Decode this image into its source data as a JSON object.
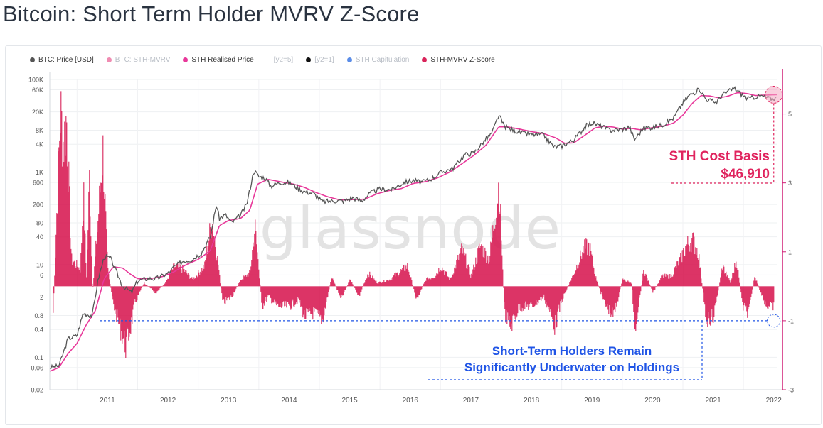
{
  "page": {
    "title": "Bitcoin: Short Term Holder MVRV Z-Score"
  },
  "legend": [
    {
      "label": "BTC: Price [USD]",
      "color": "#555555",
      "active": true
    },
    {
      "label": "BTC: STH-MVRV",
      "color": "#f08cb2",
      "active": false
    },
    {
      "label": "STH Realised Price",
      "color": "#e8389a",
      "active": true
    },
    {
      "label": "[y2=5]",
      "color": "",
      "active": false
    },
    {
      "label": "[y2=1]",
      "color": "#111111",
      "active": false
    },
    {
      "label": "STH Capitulation",
      "color": "#5b8de8",
      "active": false
    },
    {
      "label": "STH-MVRV Z-Score",
      "color": "#d9245a",
      "active": true
    }
  ],
  "watermark": "glassnode",
  "annotations": {
    "cost_basis_title": "STH Cost Basis",
    "cost_basis_value": "$46,910",
    "underwater_line1": "Short-Term Holders Remain",
    "underwater_line2": "Significantly Underwater on Holdings"
  },
  "colors": {
    "price": "#555555",
    "realised": "#e8389a",
    "zscore": "#d9245a",
    "accent_red": "#e0245e",
    "accent_blue": "#1f54e6",
    "right_axis": "#d01f76"
  },
  "chart_data": {
    "type": "line",
    "title": "Bitcoin: Short Term Holder MVRV Z-Score",
    "x_ticks": [
      "2011",
      "2012",
      "2013",
      "2014",
      "2015",
      "2016",
      "2017",
      "2018",
      "2019",
      "2020",
      "2021",
      "2022"
    ],
    "x_range": [
      2010.55,
      2022.55
    ],
    "y_left": {
      "scale": "log",
      "range": [
        0.02,
        100000
      ],
      "ticks": [
        {
          "value": 100000,
          "label": "100K"
        },
        {
          "value": 60000,
          "label": "60K"
        },
        {
          "value": 20000,
          "label": "20K"
        },
        {
          "value": 8000,
          "label": "8K"
        },
        {
          "value": 4000,
          "label": "4K"
        },
        {
          "value": 1000,
          "label": "1K"
        },
        {
          "value": 600,
          "label": "600"
        },
        {
          "value": 200,
          "label": "200"
        },
        {
          "value": 80,
          "label": "80"
        },
        {
          "value": 40,
          "label": "40"
        },
        {
          "value": 10,
          "label": "10"
        },
        {
          "value": 6,
          "label": "6"
        },
        {
          "value": 2,
          "label": "2"
        },
        {
          "value": 0.8,
          "label": "0.8"
        },
        {
          "value": 0.4,
          "label": "0.4"
        },
        {
          "value": 0.1,
          "label": "0.1"
        },
        {
          "value": 0.06,
          "label": "0.06"
        },
        {
          "value": 0.02,
          "label": "0.02"
        }
      ]
    },
    "y_right": {
      "scale": "linear",
      "range": [
        -3,
        6
      ],
      "ticks": [
        {
          "value": 5,
          "label": "5"
        },
        {
          "value": 3,
          "label": "3"
        },
        {
          "value": 1,
          "label": "1"
        },
        {
          "value": -1,
          "label": "-1"
        },
        {
          "value": -3,
          "label": "-3"
        }
      ]
    },
    "reference_lines": {
      "sth_cost_basis": 46910,
      "zscore_level": -1
    },
    "series": [
      {
        "name": "BTC: Price [USD]",
        "axis": "left",
        "points": [
          [
            2010.55,
            0.06
          ],
          [
            2010.7,
            0.065
          ],
          [
            2010.85,
            0.25
          ],
          [
            2011.0,
            0.3
          ],
          [
            2011.1,
            0.9
          ],
          [
            2011.25,
            0.8
          ],
          [
            2011.35,
            5
          ],
          [
            2011.45,
            15
          ],
          [
            2011.55,
            14
          ],
          [
            2011.65,
            7
          ],
          [
            2011.75,
            3.5
          ],
          [
            2011.9,
            2.5
          ],
          [
            2012.0,
            4.5
          ],
          [
            2012.15,
            5
          ],
          [
            2012.3,
            5
          ],
          [
            2012.5,
            6.5
          ],
          [
            2012.6,
            9
          ],
          [
            2012.75,
            12
          ],
          [
            2012.9,
            13
          ],
          [
            2013.05,
            18
          ],
          [
            2013.2,
            40
          ],
          [
            2013.3,
            200
          ],
          [
            2013.35,
            100
          ],
          [
            2013.45,
            120
          ],
          [
            2013.55,
            80
          ],
          [
            2013.7,
            120
          ],
          [
            2013.8,
            200
          ],
          [
            2013.92,
            1100
          ],
          [
            2014.0,
            800
          ],
          [
            2014.1,
            750
          ],
          [
            2014.2,
            500
          ],
          [
            2014.35,
            600
          ],
          [
            2014.5,
            600
          ],
          [
            2014.6,
            500
          ],
          [
            2014.75,
            380
          ],
          [
            2014.9,
            350
          ],
          [
            2015.05,
            230
          ],
          [
            2015.2,
            240
          ],
          [
            2015.4,
            240
          ],
          [
            2015.55,
            280
          ],
          [
            2015.7,
            240
          ],
          [
            2015.85,
            360
          ],
          [
            2016.0,
            430
          ],
          [
            2016.2,
            420
          ],
          [
            2016.4,
            600
          ],
          [
            2016.55,
            660
          ],
          [
            2016.7,
            610
          ],
          [
            2016.85,
            720
          ],
          [
            2017.0,
            980
          ],
          [
            2017.2,
            1200
          ],
          [
            2017.4,
            2400
          ],
          [
            2017.55,
            2600
          ],
          [
            2017.7,
            4400
          ],
          [
            2017.85,
            7000
          ],
          [
            2017.96,
            17000
          ],
          [
            2018.05,
            10000
          ],
          [
            2018.15,
            8500
          ],
          [
            2018.35,
            7000
          ],
          [
            2018.5,
            6500
          ],
          [
            2018.7,
            6400
          ],
          [
            2018.87,
            3500
          ],
          [
            2019.0,
            3700
          ],
          [
            2019.2,
            5000
          ],
          [
            2019.4,
            10000
          ],
          [
            2019.5,
            11500
          ],
          [
            2019.65,
            10000
          ],
          [
            2019.8,
            8000
          ],
          [
            2020.0,
            8500
          ],
          [
            2020.12,
            9500
          ],
          [
            2020.2,
            5000
          ],
          [
            2020.35,
            9000
          ],
          [
            2020.55,
            9500
          ],
          [
            2020.7,
            11000
          ],
          [
            2020.85,
            15000
          ],
          [
            2020.98,
            29000
          ],
          [
            2021.1,
            45000
          ],
          [
            2021.28,
            62000
          ],
          [
            2021.38,
            38000
          ],
          [
            2021.55,
            32000
          ],
          [
            2021.65,
            47000
          ],
          [
            2021.85,
            65000
          ],
          [
            2021.98,
            47000
          ],
          [
            2022.08,
            38000
          ],
          [
            2022.2,
            43000
          ],
          [
            2022.3,
            44000
          ],
          [
            2022.45,
            39000
          ],
          [
            2022.55,
            40000
          ]
        ]
      },
      {
        "name": "STH Realised Price",
        "axis": "left",
        "points": [
          [
            2010.55,
            0.05
          ],
          [
            2010.7,
            0.06
          ],
          [
            2010.85,
            0.12
          ],
          [
            2011.0,
            0.2
          ],
          [
            2011.15,
            0.5
          ],
          [
            2011.3,
            1.0
          ],
          [
            2011.45,
            5
          ],
          [
            2011.6,
            9
          ],
          [
            2011.75,
            8.5
          ],
          [
            2011.9,
            6
          ],
          [
            2012.0,
            5
          ],
          [
            2012.2,
            5
          ],
          [
            2012.4,
            5.5
          ],
          [
            2012.6,
            7
          ],
          [
            2012.8,
            10
          ],
          [
            2013.0,
            13
          ],
          [
            2013.2,
            20
          ],
          [
            2013.35,
            70
          ],
          [
            2013.5,
            90
          ],
          [
            2013.7,
            100
          ],
          [
            2013.85,
            150
          ],
          [
            2013.98,
            550
          ],
          [
            2014.15,
            700
          ],
          [
            2014.35,
            620
          ],
          [
            2014.55,
            560
          ],
          [
            2014.75,
            470
          ],
          [
            2014.95,
            360
          ],
          [
            2015.15,
            290
          ],
          [
            2015.35,
            250
          ],
          [
            2015.55,
            255
          ],
          [
            2015.75,
            260
          ],
          [
            2015.95,
            340
          ],
          [
            2016.15,
            400
          ],
          [
            2016.35,
            440
          ],
          [
            2016.55,
            570
          ],
          [
            2016.75,
            620
          ],
          [
            2016.95,
            750
          ],
          [
            2017.15,
            1000
          ],
          [
            2017.35,
            1500
          ],
          [
            2017.55,
            2300
          ],
          [
            2017.75,
            3800
          ],
          [
            2017.96,
            9500
          ],
          [
            2018.1,
            9500
          ],
          [
            2018.3,
            8500
          ],
          [
            2018.5,
            7500
          ],
          [
            2018.7,
            6800
          ],
          [
            2018.9,
            5500
          ],
          [
            2019.05,
            4200
          ],
          [
            2019.2,
            4300
          ],
          [
            2019.4,
            6500
          ],
          [
            2019.55,
            9000
          ],
          [
            2019.7,
            9800
          ],
          [
            2019.85,
            9400
          ],
          [
            2020.0,
            8500
          ],
          [
            2020.15,
            8800
          ],
          [
            2020.3,
            8200
          ],
          [
            2020.5,
            9100
          ],
          [
            2020.7,
            10000
          ],
          [
            2020.85,
            11500
          ],
          [
            2021.0,
            17000
          ],
          [
            2021.15,
            30000
          ],
          [
            2021.3,
            45000
          ],
          [
            2021.45,
            44000
          ],
          [
            2021.6,
            40000
          ],
          [
            2021.75,
            44000
          ],
          [
            2021.9,
            52000
          ],
          [
            2022.05,
            50000
          ],
          [
            2022.2,
            45000
          ],
          [
            2022.35,
            46000
          ],
          [
            2022.55,
            46910
          ]
        ]
      },
      {
        "name": "STH-MVRV Z-Score",
        "axis": "right",
        "points": [
          [
            2010.6,
            -0.8
          ],
          [
            2010.72,
            5.3
          ],
          [
            2010.77,
            4.2
          ],
          [
            2010.82,
            5.1
          ],
          [
            2010.9,
            0.8
          ],
          [
            2011.05,
            0.5
          ],
          [
            2011.1,
            2.8
          ],
          [
            2011.15,
            0.2
          ],
          [
            2011.2,
            3.3
          ],
          [
            2011.25,
            -0.2
          ],
          [
            2011.35,
            2.2
          ],
          [
            2011.42,
            4.1
          ],
          [
            2011.5,
            0.5
          ],
          [
            2011.6,
            -0.6
          ],
          [
            2011.7,
            -1.2
          ],
          [
            2011.8,
            -1.8
          ],
          [
            2011.88,
            -1.2
          ],
          [
            2011.95,
            -0.5
          ],
          [
            2012.1,
            0.1
          ],
          [
            2012.3,
            -0.2
          ],
          [
            2012.45,
            0.1
          ],
          [
            2012.6,
            0.6
          ],
          [
            2012.75,
            0.5
          ],
          [
            2012.9,
            0.2
          ],
          [
            2013.1,
            0.6
          ],
          [
            2013.22,
            2.0
          ],
          [
            2013.3,
            1.0
          ],
          [
            2013.4,
            -0.5
          ],
          [
            2013.55,
            -0.3
          ],
          [
            2013.7,
            0.2
          ],
          [
            2013.85,
            0.4
          ],
          [
            2013.93,
            1.8
          ],
          [
            2014.05,
            -0.6
          ],
          [
            2014.15,
            -0.3
          ],
          [
            2014.3,
            -0.6
          ],
          [
            2014.5,
            -0.6
          ],
          [
            2014.65,
            -0.4
          ],
          [
            2014.75,
            -0.9
          ],
          [
            2014.9,
            -0.8
          ],
          [
            2015.05,
            -1.0
          ],
          [
            2015.2,
            0.3
          ],
          [
            2015.35,
            -0.4
          ],
          [
            2015.5,
            0.2
          ],
          [
            2015.65,
            -0.3
          ],
          [
            2015.8,
            0.4
          ],
          [
            2015.95,
            0.1
          ],
          [
            2016.15,
            0.2
          ],
          [
            2016.3,
            0.4
          ],
          [
            2016.45,
            0.6
          ],
          [
            2016.6,
            -0.4
          ],
          [
            2016.75,
            0.2
          ],
          [
            2016.9,
            0.3
          ],
          [
            2017.0,
            0.6
          ],
          [
            2017.15,
            0.2
          ],
          [
            2017.35,
            1.1
          ],
          [
            2017.5,
            0.3
          ],
          [
            2017.65,
            1.2
          ],
          [
            2017.8,
            0.8
          ],
          [
            2017.96,
            3.1
          ],
          [
            2018.05,
            -0.8
          ],
          [
            2018.15,
            -1.2
          ],
          [
            2018.3,
            -0.6
          ],
          [
            2018.5,
            -0.6
          ],
          [
            2018.7,
            -0.3
          ],
          [
            2018.88,
            -1.2
          ],
          [
            2019.0,
            -0.4
          ],
          [
            2019.2,
            0.4
          ],
          [
            2019.35,
            1.1
          ],
          [
            2019.45,
            1.2
          ],
          [
            2019.55,
            0.3
          ],
          [
            2019.7,
            -0.5
          ],
          [
            2019.85,
            -0.9
          ],
          [
            2020.0,
            0.2
          ],
          [
            2020.15,
            0.1
          ],
          [
            2020.2,
            -1.3
          ],
          [
            2020.35,
            0.5
          ],
          [
            2020.5,
            -0.2
          ],
          [
            2020.65,
            0.3
          ],
          [
            2020.8,
            0.3
          ],
          [
            2020.95,
            0.8
          ],
          [
            2021.05,
            1.2
          ],
          [
            2021.15,
            1.4
          ],
          [
            2021.25,
            1.0
          ],
          [
            2021.38,
            -1.0
          ],
          [
            2021.5,
            -0.9
          ],
          [
            2021.65,
            0.6
          ],
          [
            2021.78,
            0.1
          ],
          [
            2021.88,
            0.8
          ],
          [
            2021.98,
            -0.6
          ],
          [
            2022.08,
            -0.8
          ],
          [
            2022.18,
            0.3
          ],
          [
            2022.28,
            -0.2
          ],
          [
            2022.38,
            -0.6
          ],
          [
            2022.5,
            -0.6
          ]
        ]
      }
    ]
  }
}
